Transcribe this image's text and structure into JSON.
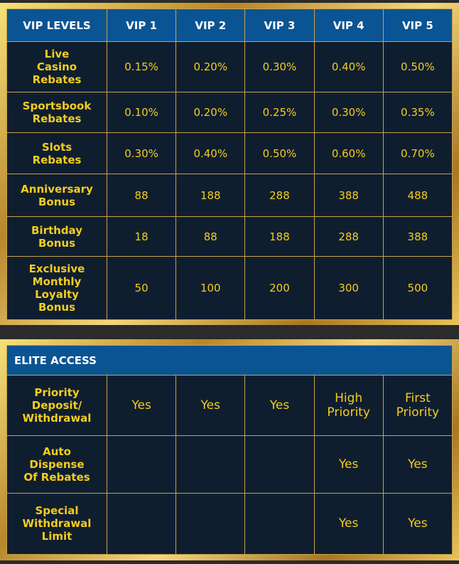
{
  "vip_table": {
    "header": [
      "VIP LEVELS",
      "VIP 1",
      "VIP 2",
      "VIP 3",
      "VIP 4",
      "VIP 5"
    ],
    "rows": [
      {
        "label": [
          "Live",
          "Casino",
          "Rebates"
        ],
        "values": [
          "0.15%",
          "0.20%",
          "0.30%",
          "0.40%",
          "0.50%"
        ]
      },
      {
        "label": [
          "Sportsbook",
          "Rebates"
        ],
        "values": [
          "0.10%",
          "0.20%",
          "0.25%",
          "0.30%",
          "0.35%"
        ]
      },
      {
        "label": [
          "Slots",
          "Rebates"
        ],
        "values": [
          "0.30%",
          "0.40%",
          "0.50%",
          "0.60%",
          "0.70%"
        ]
      },
      {
        "label": [
          "Anniversary",
          "Bonus"
        ],
        "values": [
          "88",
          "188",
          "288",
          "388",
          "488"
        ]
      },
      {
        "label": [
          "Birthday",
          "Bonus"
        ],
        "values": [
          "18",
          "88",
          "188",
          "288",
          "388"
        ]
      },
      {
        "label": [
          "Exclusive",
          "Monthly",
          "Loyalty",
          "Bonus"
        ],
        "values": [
          "50",
          "100",
          "200",
          "300",
          "500"
        ]
      }
    ]
  },
  "elite_table": {
    "title": "ELITE ACCESS",
    "rows": [
      {
        "label": [
          "Priority",
          "Deposit/",
          "Withdrawal"
        ],
        "values": [
          "Yes",
          "Yes",
          "Yes",
          "High Priority",
          "First Priority"
        ]
      },
      {
        "label": [
          "Auto",
          "Dispense",
          "Of Rebates"
        ],
        "values": [
          "",
          "",
          "",
          "Yes",
          "Yes"
        ]
      },
      {
        "label": [
          "Special",
          "Withdrawal",
          "Limit"
        ],
        "values": [
          "",
          "",
          "",
          "Yes",
          "Yes"
        ]
      }
    ]
  },
  "colors": {
    "header_blue": "#0b5493",
    "cell_navy": "#0f1e2f",
    "text_gold": "#f4cd1f",
    "border_gold": "#c8a24a"
  }
}
